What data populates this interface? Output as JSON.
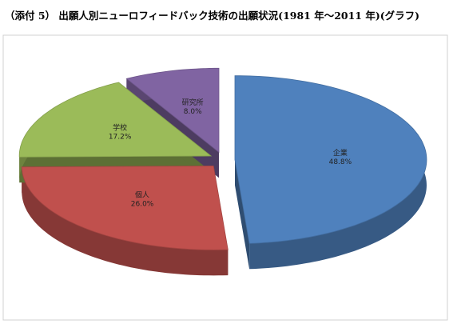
{
  "chart_data": {
    "type": "pie",
    "title": "（添付 5） 出願人別ニューロフィードバック技術の出願状況(1981 年～2011 年)(グラフ)",
    "categories": [
      "企業",
      "個人",
      "学校",
      "研究所"
    ],
    "values": [
      48.8,
      26.0,
      17.2,
      8.0
    ],
    "value_labels": [
      "48.8%",
      "26.0%",
      "17.2%",
      "8.0%"
    ],
    "colors": [
      "#4f81bd",
      "#c0504d",
      "#9bbb59",
      "#8064a2"
    ]
  }
}
